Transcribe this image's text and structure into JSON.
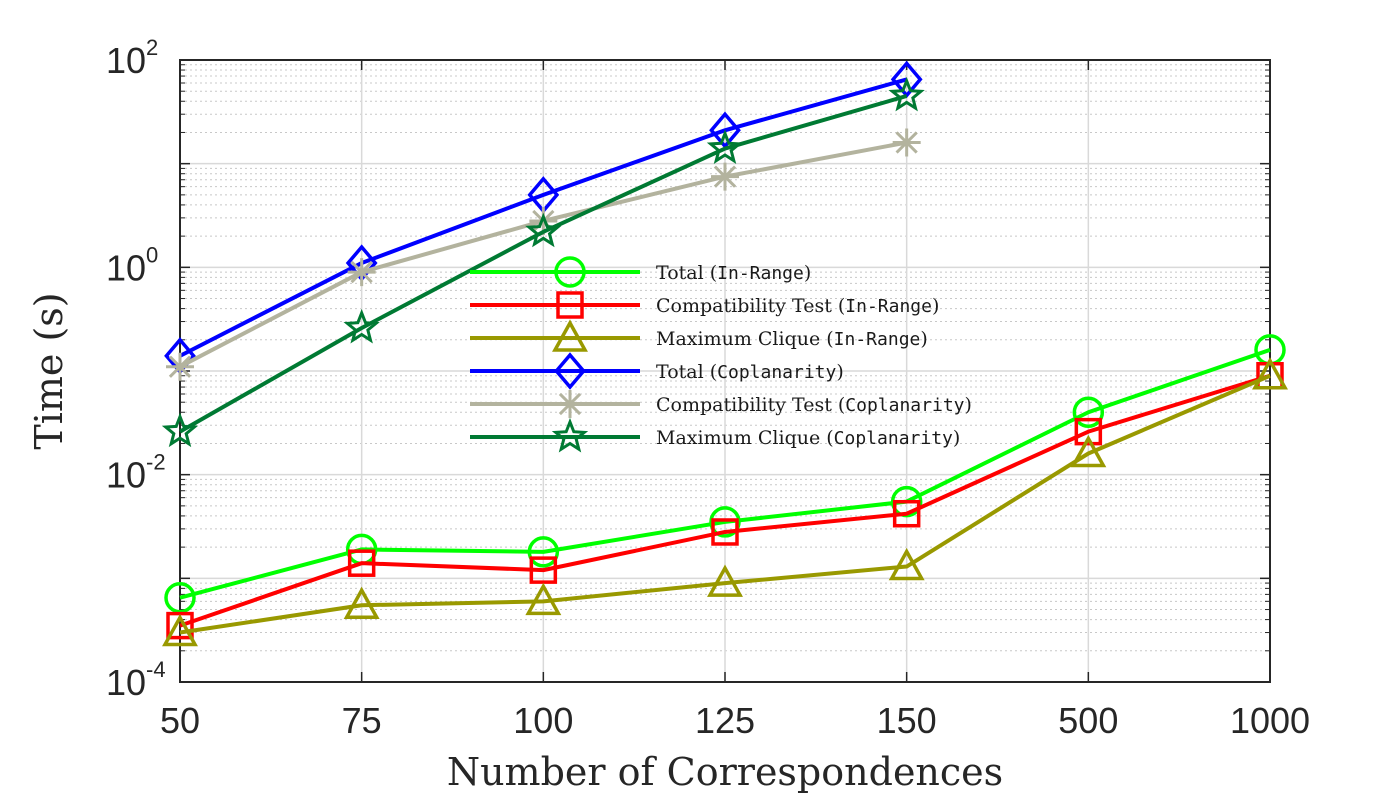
{
  "chart_data": {
    "type": "line",
    "title": "",
    "xlabel": "Number of Correspondences",
    "ylabel": "Time (s)",
    "y_scale": "log",
    "ylim": [
      0.0001,
      100
    ],
    "categories": [
      "50",
      "75",
      "100",
      "125",
      "150",
      "500",
      "1000"
    ],
    "y_ticks": [
      {
        "base": "10",
        "exp": "-4"
      },
      {
        "base": "10",
        "exp": "-2"
      },
      {
        "base": "10",
        "exp": "0"
      },
      {
        "base": "10",
        "exp": "2"
      }
    ],
    "grid": true,
    "legend_position": "center",
    "series": [
      {
        "name": "Total",
        "method": "In-Range",
        "color": "#00ff00",
        "marker": "circle",
        "values": [
          0.00065,
          0.0019,
          0.0018,
          0.0035,
          0.0055,
          0.04,
          0.16
        ]
      },
      {
        "name": "Compatibility Test",
        "method": "In-Range",
        "color": "#ff0000",
        "marker": "square",
        "values": [
          0.00035,
          0.0014,
          0.0012,
          0.0028,
          0.0042,
          0.026,
          0.09
        ]
      },
      {
        "name": "Maximum Clique",
        "method": "In-Range",
        "color": "#999900",
        "marker": "triangle",
        "values": [
          0.0003,
          0.00055,
          0.0006,
          0.0009,
          0.0013,
          0.016,
          0.09
        ]
      },
      {
        "name": "Total",
        "method": "Coplanarity",
        "color": "#0000ff",
        "marker": "diamond",
        "values": [
          0.14,
          1.1,
          5.0,
          21,
          65,
          null,
          null
        ]
      },
      {
        "name": "Compatibility Test",
        "method": "Coplanarity",
        "color": "#b3b39e",
        "marker": "asterisk",
        "values": [
          0.11,
          0.9,
          2.8,
          7.5,
          16,
          null,
          null
        ]
      },
      {
        "name": "Maximum Clique",
        "method": "Coplanarity",
        "color": "#007a33",
        "marker": "star",
        "values": [
          0.026,
          0.26,
          2.2,
          14,
          45,
          null,
          null
        ]
      }
    ]
  }
}
